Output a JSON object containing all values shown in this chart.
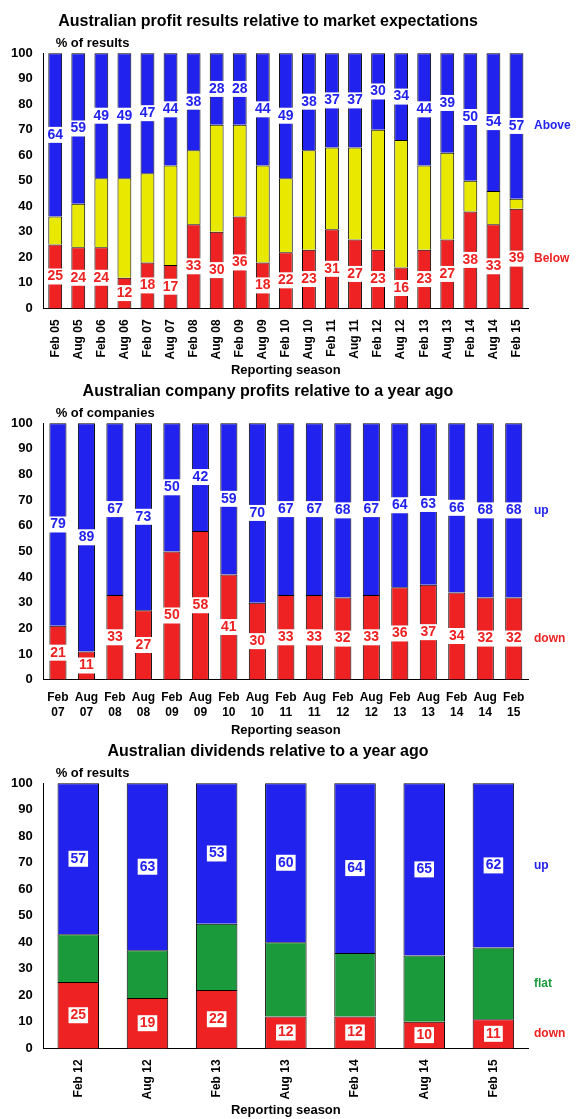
{
  "chart_data": [
    {
      "type": "bar",
      "title": "Australian profit results relative to market expectations",
      "ylabel": "% of results",
      "xlabel": "Reporting season",
      "stacked": true,
      "grid": false,
      "legend": false,
      "ylim": [
        0,
        100
      ],
      "yticks": [
        0,
        10,
        20,
        30,
        40,
        50,
        60,
        70,
        80,
        90,
        100
      ],
      "categories": [
        "Feb 05",
        "Aug 05",
        "Feb 06",
        "Aug 06",
        "Feb 07",
        "Aug 07",
        "Feb 08",
        "Aug 08",
        "Feb 09",
        "Aug 09",
        "Feb 10",
        "Aug 10",
        "Feb 11",
        "Aug 11",
        "Feb 12",
        "Aug 12",
        "Feb 13",
        "Aug 13",
        "Feb 14",
        "Aug 14",
        "Feb 15"
      ],
      "series": [
        {
          "name": "Below",
          "color": "#ee2222",
          "values": [
            25,
            24,
            24,
            12,
            18,
            17,
            33,
            30,
            36,
            18,
            22,
            23,
            31,
            27,
            23,
            16,
            23,
            27,
            38,
            33,
            39
          ],
          "value_labels": [
            "25",
            "24",
            "24",
            "12",
            "18",
            "17",
            "33",
            "30",
            "36",
            "18",
            "22",
            "23",
            "31",
            "27",
            "23",
            "16",
            "23",
            "27",
            "38",
            "33",
            "39"
          ]
        },
        {
          "color": "#e8e800",
          "values": [
            11,
            17,
            27,
            39,
            35,
            39,
            29,
            42,
            36,
            38,
            29,
            39,
            32,
            36,
            47,
            50,
            33,
            34,
            12,
            13,
            4
          ]
        },
        {
          "name": "Above",
          "color": "#2222ee",
          "values": [
            64,
            59,
            49,
            49,
            47,
            44,
            38,
            28,
            28,
            44,
            49,
            38,
            37,
            37,
            30,
            34,
            44,
            39,
            50,
            54,
            57
          ],
          "value_labels": [
            "64",
            "59",
            "49",
            "49",
            "47",
            "44",
            "38",
            "28",
            "28",
            "44",
            "49",
            "38",
            "37",
            "37",
            "30",
            "34",
            "44",
            "39",
            "50",
            "54",
            "57"
          ]
        }
      ]
    },
    {
      "type": "bar",
      "title": "Australian company profits relative to a year ago",
      "ylabel": "% of companies",
      "xlabel": "Reporting season",
      "stacked": true,
      "grid": false,
      "legend": false,
      "ylim": [
        0,
        100
      ],
      "yticks": [
        0,
        10,
        20,
        30,
        40,
        50,
        60,
        70,
        80,
        90,
        100
      ],
      "categories": [
        "Feb 07",
        "Aug 07",
        "Feb 08",
        "Aug 08",
        "Feb 09",
        "Aug 09",
        "Feb 10",
        "Aug 10",
        "Feb 11",
        "Aug 11",
        "Feb 12",
        "Aug 12",
        "Feb 13",
        "Aug 13",
        "Feb 14",
        "Aug 14",
        "Feb 15"
      ],
      "series": [
        {
          "name": "down",
          "color": "#ee2222",
          "values": [
            21,
            11,
            33,
            27,
            50,
            58,
            41,
            30,
            33,
            33,
            32,
            33,
            36,
            37,
            34,
            32,
            32
          ],
          "value_labels": [
            "21",
            "11",
            "33",
            "27",
            "50",
            "58",
            "41",
            "30",
            "33",
            "33",
            "32",
            "33",
            "36",
            "37",
            "34",
            "32",
            "32"
          ]
        },
        {
          "name": "up",
          "color": "#2222ee",
          "values": [
            79,
            89,
            67,
            73,
            50,
            42,
            59,
            70,
            67,
            67,
            68,
            67,
            64,
            63,
            66,
            68,
            68
          ],
          "value_labels": [
            "79",
            "89",
            "67",
            "73",
            "50",
            "42",
            "59",
            "70",
            "67",
            "67",
            "68",
            "67",
            "64",
            "63",
            "66",
            "68",
            "68"
          ]
        }
      ]
    },
    {
      "type": "bar",
      "title": "Australian dividends relative to a year ago",
      "ylabel": "% of results",
      "xlabel": "Reporting season",
      "stacked": true,
      "grid": false,
      "legend": false,
      "ylim": [
        0,
        100
      ],
      "yticks": [
        0,
        10,
        20,
        30,
        40,
        50,
        60,
        70,
        80,
        90,
        100
      ],
      "categories": [
        "Feb 12",
        "Aug 12",
        "Feb 13",
        "Aug 13",
        "Feb 14",
        "Aug 14",
        "Feb 15"
      ],
      "series": [
        {
          "name": "down",
          "color": "#ee2222",
          "values": [
            25,
            19,
            22,
            12,
            12,
            10,
            11
          ],
          "value_labels": [
            "25",
            "19",
            "22",
            "12",
            "12",
            "10",
            "11"
          ]
        },
        {
          "name": "flat",
          "color": "#1a9a3a",
          "values": [
            18,
            18,
            25,
            28,
            24,
            25,
            27
          ]
        },
        {
          "name": "up",
          "color": "#2222ee",
          "values": [
            57,
            63,
            53,
            60,
            64,
            65,
            62
          ],
          "value_labels": [
            "57",
            "63",
            "53",
            "60",
            "64",
            "65",
            "62"
          ]
        }
      ]
    }
  ]
}
